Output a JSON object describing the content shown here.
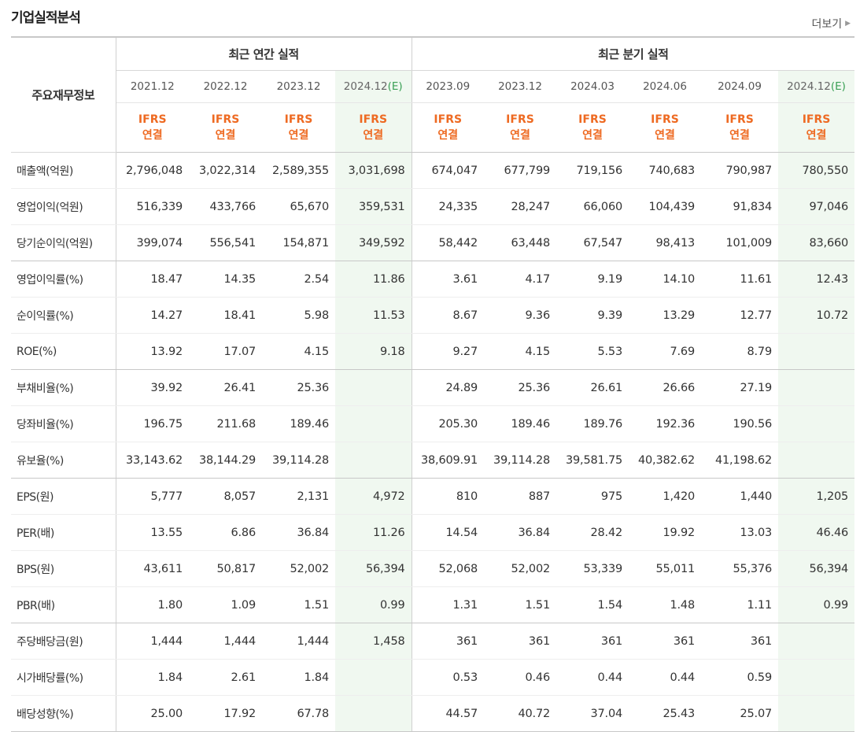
{
  "header": {
    "title": "기업실적분석",
    "more_label": "더보기"
  },
  "table": {
    "label_header": "주요재무정보",
    "group_annual": "최근 연간 실적",
    "group_quarter": "최근 분기 실적",
    "periods": [
      "2021.12",
      "2022.12",
      "2023.12",
      "2024.12",
      "2023.09",
      "2023.12",
      "2024.03",
      "2024.06",
      "2024.09",
      "2024.12"
    ],
    "estimate_mark": "(E)",
    "ifrs_top": "IFRS",
    "ifrs_bottom": "연결",
    "rows": [
      {
        "label": "매출액(억원)",
        "values": [
          "2,796,048",
          "3,022,314",
          "2,589,355",
          "3,031,698",
          "674,047",
          "677,799",
          "719,156",
          "740,683",
          "790,987",
          "780,550"
        ]
      },
      {
        "label": "영업이익(억원)",
        "values": [
          "516,339",
          "433,766",
          "65,670",
          "359,531",
          "24,335",
          "28,247",
          "66,060",
          "104,439",
          "91,834",
          "97,046"
        ]
      },
      {
        "label": "당기순이익(억원)",
        "values": [
          "399,074",
          "556,541",
          "154,871",
          "349,592",
          "58,442",
          "63,448",
          "67,547",
          "98,413",
          "101,009",
          "83,660"
        ]
      },
      {
        "label": "영업이익률(%)",
        "values": [
          "18.47",
          "14.35",
          "2.54",
          "11.86",
          "3.61",
          "4.17",
          "9.19",
          "14.10",
          "11.61",
          "12.43"
        ]
      },
      {
        "label": "순이익률(%)",
        "values": [
          "14.27",
          "18.41",
          "5.98",
          "11.53",
          "8.67",
          "9.36",
          "9.39",
          "13.29",
          "12.77",
          "10.72"
        ]
      },
      {
        "label": "ROE(%)",
        "values": [
          "13.92",
          "17.07",
          "4.15",
          "9.18",
          "9.27",
          "4.15",
          "5.53",
          "7.69",
          "8.79",
          ""
        ]
      },
      {
        "label": "부채비율(%)",
        "values": [
          "39.92",
          "26.41",
          "25.36",
          "",
          "24.89",
          "25.36",
          "26.61",
          "26.66",
          "27.19",
          ""
        ]
      },
      {
        "label": "당좌비율(%)",
        "values": [
          "196.75",
          "211.68",
          "189.46",
          "",
          "205.30",
          "189.46",
          "189.76",
          "192.36",
          "190.56",
          ""
        ]
      },
      {
        "label": "유보율(%)",
        "values": [
          "33,143.62",
          "38,144.29",
          "39,114.28",
          "",
          "38,609.91",
          "39,114.28",
          "39,581.75",
          "40,382.62",
          "41,198.62",
          ""
        ]
      },
      {
        "label": "EPS(원)",
        "values": [
          "5,777",
          "8,057",
          "2,131",
          "4,972",
          "810",
          "887",
          "975",
          "1,420",
          "1,440",
          "1,205"
        ]
      },
      {
        "label": "PER(배)",
        "values": [
          "13.55",
          "6.86",
          "36.84",
          "11.26",
          "14.54",
          "36.84",
          "28.42",
          "19.92",
          "13.03",
          "46.46"
        ]
      },
      {
        "label": "BPS(원)",
        "values": [
          "43,611",
          "50,817",
          "52,002",
          "56,394",
          "52,068",
          "52,002",
          "53,339",
          "55,011",
          "55,376",
          "56,394"
        ]
      },
      {
        "label": "PBR(배)",
        "values": [
          "1.80",
          "1.09",
          "1.51",
          "0.99",
          "1.31",
          "1.51",
          "1.54",
          "1.48",
          "1.11",
          "0.99"
        ]
      },
      {
        "label": "주당배당금(원)",
        "values": [
          "1,444",
          "1,444",
          "1,444",
          "1,458",
          "361",
          "361",
          "361",
          "361",
          "361",
          ""
        ]
      },
      {
        "label": "시가배당률(%)",
        "values": [
          "1.84",
          "2.61",
          "1.84",
          "",
          "0.53",
          "0.46",
          "0.44",
          "0.44",
          "0.59",
          ""
        ]
      },
      {
        "label": "배당성향(%)",
        "values": [
          "25.00",
          "17.92",
          "67.78",
          "",
          "44.57",
          "40.72",
          "37.04",
          "25.43",
          "25.07",
          ""
        ]
      }
    ]
  }
}
